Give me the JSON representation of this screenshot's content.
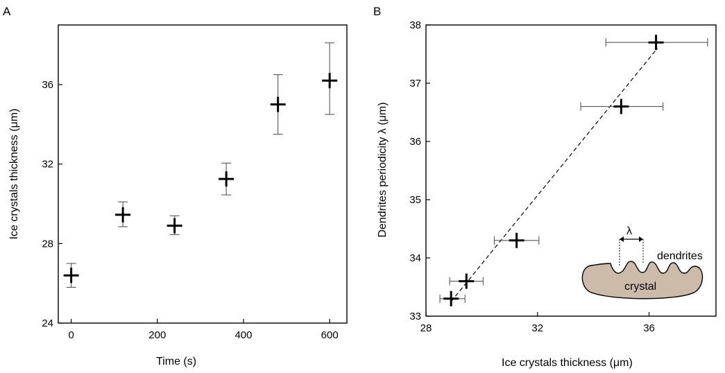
{
  "panels": [
    {
      "label": "A",
      "xlabel": "Time (s)",
      "ylabel": "Ice crystals thickness (μm)"
    },
    {
      "label": "B",
      "xlabel": "Ice crystals thickness (μm)",
      "ylabel": "Dendrites periodicity λ (μm)",
      "inset": {
        "lambda_label": "λ",
        "dendrites_label": "dendrites",
        "crystal_label": "crystal",
        "crystal_color": "#cdbbaa"
      }
    }
  ],
  "chart_data": [
    {
      "type": "scatter",
      "panel": "A",
      "xlabel": "Time (s)",
      "ylabel": "Ice crystals thickness (μm)",
      "xlim": [
        -30,
        640
      ],
      "ylim": [
        24,
        39
      ],
      "xticks": [
        0,
        200,
        400,
        600
      ],
      "yticks": [
        24,
        28,
        32,
        36
      ],
      "grid": false,
      "points": [
        {
          "x": 0,
          "y": 26.4,
          "y_err_low": 25.8,
          "y_err_high": 27.0
        },
        {
          "x": 120,
          "y": 29.45,
          "y_err_low": 28.85,
          "y_err_high": 30.1
        },
        {
          "x": 240,
          "y": 28.9,
          "y_err_low": 28.45,
          "y_err_high": 29.4
        },
        {
          "x": 360,
          "y": 31.25,
          "y_err_low": 30.45,
          "y_err_high": 32.05
        },
        {
          "x": 480,
          "y": 35.0,
          "y_err_low": 33.5,
          "y_err_high": 36.5
        },
        {
          "x": 600,
          "y": 36.2,
          "y_err_low": 34.5,
          "y_err_high": 38.1
        }
      ]
    },
    {
      "type": "scatter",
      "panel": "B",
      "xlabel": "Ice crystals thickness (μm)",
      "ylabel": "Dendrites periodicity λ (μm)",
      "xlim": [
        28,
        38.4
      ],
      "ylim": [
        33,
        38
      ],
      "xticks": [
        28,
        32,
        36
      ],
      "yticks": [
        33,
        34,
        35,
        36,
        37,
        38
      ],
      "grid": false,
      "fit_line": {
        "style": "dashed",
        "from": [
          28.9,
          33.25
        ],
        "to": [
          36.3,
          37.6
        ]
      },
      "points": [
        {
          "x": 28.9,
          "y": 33.3,
          "x_err_low": 28.5,
          "x_err_high": 29.4
        },
        {
          "x": 29.45,
          "y": 33.6,
          "x_err_low": 28.85,
          "x_err_high": 30.05
        },
        {
          "x": 31.25,
          "y": 34.3,
          "x_err_low": 30.45,
          "x_err_high": 32.05
        },
        {
          "x": 35.0,
          "y": 36.6,
          "x_err_low": 33.55,
          "x_err_high": 36.5
        },
        {
          "x": 36.25,
          "y": 37.7,
          "x_err_low": 34.45,
          "x_err_high": 38.1
        }
      ]
    }
  ]
}
